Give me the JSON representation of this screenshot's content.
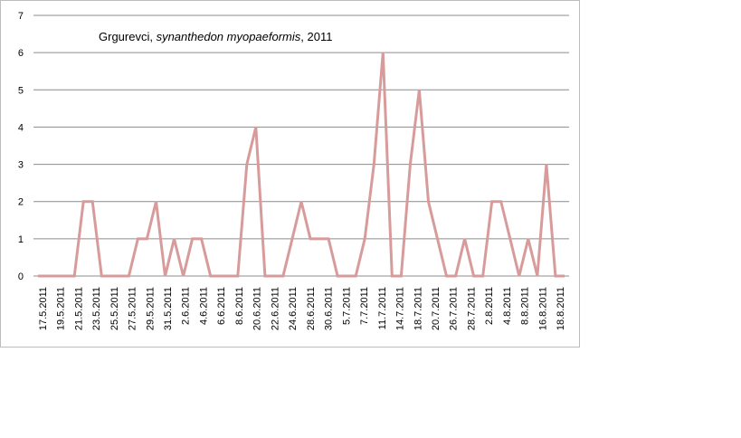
{
  "chart_data": {
    "type": "line",
    "title_prefix": "Grgurevci, ",
    "title_species": "synanthedon myopaeformis",
    "title_suffix": ", 2011",
    "xlabel": "",
    "ylabel": "",
    "ylim": [
      0,
      7
    ],
    "y_ticks": [
      0,
      1,
      2,
      3,
      4,
      5,
      6,
      7
    ],
    "grid": true,
    "legend": "none",
    "line_color": "#D89B9B",
    "x_tick_labels": [
      "17.5.2011",
      "19.5.2011",
      "21.5.2011",
      "23.5.2011",
      "25.5.2011",
      "27.5.2011",
      "29.5.2011",
      "31.5.2011",
      "2.6.2011",
      "4.6.2011",
      "6.6.2011",
      "8.6.2011",
      "20.6.2011",
      "22.6.2011",
      "24.6.2011",
      "28.6.2011",
      "30.6.2011",
      "5.7.2011",
      "7.7.2011",
      "11.7.2011",
      "14.7.2011",
      "18.7.2011",
      "20.7.2011",
      "26.7.2011",
      "28.7.2011",
      "2.8.2011",
      "4.8.2011",
      "8.8.2011",
      "16.8.2011",
      "18.8.2011"
    ],
    "values": [
      0,
      0,
      0,
      0,
      0,
      2,
      2,
      0,
      0,
      0,
      0,
      1,
      1,
      2,
      0,
      1,
      0,
      1,
      1,
      0,
      0,
      0,
      0,
      3,
      4,
      0,
      0,
      0,
      1,
      2,
      1,
      1,
      1,
      0,
      0,
      0,
      1,
      3,
      6,
      0,
      0,
      3,
      5,
      2,
      1,
      0,
      0,
      1,
      0,
      0,
      2,
      2,
      1,
      0,
      1,
      0,
      3,
      0,
      0
    ]
  }
}
